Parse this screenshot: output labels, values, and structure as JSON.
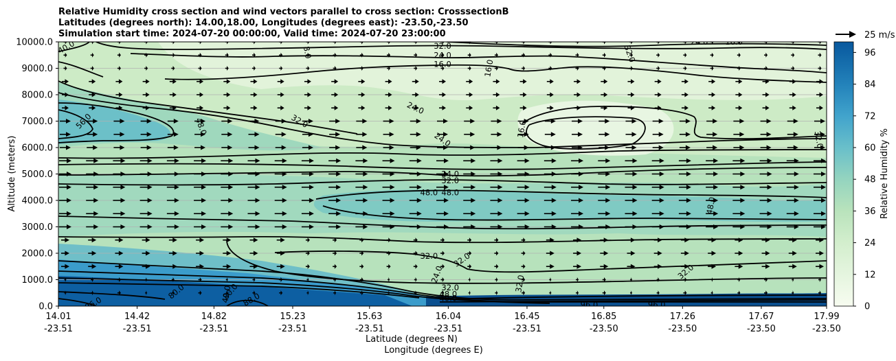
{
  "chart_data": {
    "type": "contour",
    "title_lines": [
      "Relative Humidity cross section and wind vectors parallel to cross section: CrosssectionB",
      "Latitudes (degrees north): 14.00,18.00, Longitudes (degrees east): -23.50,-23.50",
      "Simulation start time: 2024-07-20 00:00:00, Valid time: 2024-07-20 23:00:00"
    ],
    "xlabel_lat": "Latitude (degrees N)",
    "xlabel_lon": "Longitude (degrees E)",
    "ylabel": "Altitude (meters)",
    "x_ticks": [
      {
        "lat": "14.01",
        "lon": "-23.51",
        "frac": 0.0
      },
      {
        "lat": "14.42",
        "lon": "-23.51",
        "frac": 0.1025
      },
      {
        "lat": "14.82",
        "lon": "-23.51",
        "frac": 0.2025
      },
      {
        "lat": "15.23",
        "lon": "-23.51",
        "frac": 0.305
      },
      {
        "lat": "15.63",
        "lon": "-23.51",
        "frac": 0.405
      },
      {
        "lat": "16.04",
        "lon": "-23.51",
        "frac": 0.5075
      },
      {
        "lat": "16.45",
        "lon": "-23.51",
        "frac": 0.61
      },
      {
        "lat": "16.85",
        "lon": "-23.50",
        "frac": 0.71
      },
      {
        "lat": "17.26",
        "lon": "-23.50",
        "frac": 0.8125
      },
      {
        "lat": "17.67",
        "lon": "-23.50",
        "frac": 0.915
      },
      {
        "lat": "17.99",
        "lon": "-23.50",
        "frac": 1.0
      }
    ],
    "y_ticks": [
      "0.0",
      "1000.0",
      "2000.0",
      "3000.0",
      "4000.0",
      "5000.0",
      "6000.0",
      "7000.0",
      "8000.0",
      "9000.0",
      "10000.0"
    ],
    "ylim": [
      0,
      10000
    ],
    "grid": true,
    "colorbar": {
      "label": "Relative Humidity %",
      "ticks": [
        "0",
        "12",
        "24",
        "36",
        "48",
        "60",
        "72",
        "84",
        "96"
      ],
      "range": [
        0,
        100
      ]
    },
    "quiver_key": "25 m/s",
    "contour_labels": [
      {
        "text": "40.0",
        "lat": 14.05,
        "alt": 9800,
        "rot": -30
      },
      {
        "text": "8.0",
        "lat": 15.3,
        "alt": 9600,
        "rot": 80
      },
      {
        "text": "32.0",
        "lat": 16.0,
        "alt": 9850,
        "rot": 0
      },
      {
        "text": "24.0",
        "lat": 16.0,
        "alt": 9500,
        "rot": 0
      },
      {
        "text": "16.0",
        "lat": 16.0,
        "alt": 9150,
        "rot": 0
      },
      {
        "text": "16.0",
        "lat": 16.24,
        "alt": 9000,
        "rot": -80
      },
      {
        "text": "32.0",
        "lat": 16.97,
        "alt": 9550,
        "rot": 70
      },
      {
        "text": "16.0",
        "lat": 17.51,
        "alt": 10000,
        "rot": 0
      },
      {
        "text": "24.0",
        "lat": 17.33,
        "alt": 10000,
        "rot": 0
      },
      {
        "text": "56.0",
        "lat": 14.14,
        "alt": 7000,
        "rot": -45
      },
      {
        "text": "48.0",
        "lat": 14.75,
        "alt": 6800,
        "rot": 70
      },
      {
        "text": "32.0",
        "lat": 15.26,
        "alt": 7000,
        "rot": 30
      },
      {
        "text": "24.0",
        "lat": 15.86,
        "alt": 7500,
        "rot": 25
      },
      {
        "text": "24.0",
        "lat": 16.0,
        "alt": 6300,
        "rot": 35
      },
      {
        "text": "16.0",
        "lat": 16.41,
        "alt": 6700,
        "rot": -80
      },
      {
        "text": "32.0",
        "lat": 17.95,
        "alt": 6300,
        "rot": 80
      },
      {
        "text": "24.0",
        "lat": 16.04,
        "alt": 5000,
        "rot": 0
      },
      {
        "text": "32.0",
        "lat": 16.04,
        "alt": 4750,
        "rot": 0
      },
      {
        "text": "48.0",
        "lat": 15.93,
        "alt": 4300,
        "rot": 0
      },
      {
        "text": "48.0",
        "lat": 16.04,
        "alt": 4300,
        "rot": 0
      },
      {
        "text": "48.0",
        "lat": 17.39,
        "alt": 3800,
        "rot": -80
      },
      {
        "text": "32.0",
        "lat": 15.93,
        "alt": 1900,
        "rot": 0
      },
      {
        "text": "32.0",
        "lat": 16.1,
        "alt": 1750,
        "rot": -35
      },
      {
        "text": "24.0",
        "lat": 15.97,
        "alt": 1200,
        "rot": -70
      },
      {
        "text": "32.0",
        "lat": 16.04,
        "alt": 700,
        "rot": 0
      },
      {
        "text": "48.0",
        "lat": 16.03,
        "alt": 450,
        "rot": 0
      },
      {
        "text": "40.0",
        "lat": 16.03,
        "alt": 300,
        "rot": 0
      },
      {
        "text": "32.0",
        "lat": 16.4,
        "alt": 850,
        "rot": -80
      },
      {
        "text": "32.0",
        "lat": 17.26,
        "alt": 1300,
        "rot": -40
      },
      {
        "text": "96.0",
        "lat": 14.19,
        "alt": 100,
        "rot": -30
      },
      {
        "text": "80.0",
        "lat": 14.62,
        "alt": 550,
        "rot": -40
      },
      {
        "text": "80.0",
        "lat": 14.9,
        "alt": 550,
        "rot": -50
      },
      {
        "text": "40.0",
        "lat": 14.88,
        "alt": 450,
        "rot": -80
      },
      {
        "text": "88.0",
        "lat": 15.01,
        "alt": 250,
        "rot": -30
      },
      {
        "text": "96.0",
        "lat": 16.76,
        "alt": 50,
        "rot": 0
      },
      {
        "text": "96.0",
        "lat": 17.11,
        "alt": 50,
        "rot": 0
      }
    ]
  }
}
